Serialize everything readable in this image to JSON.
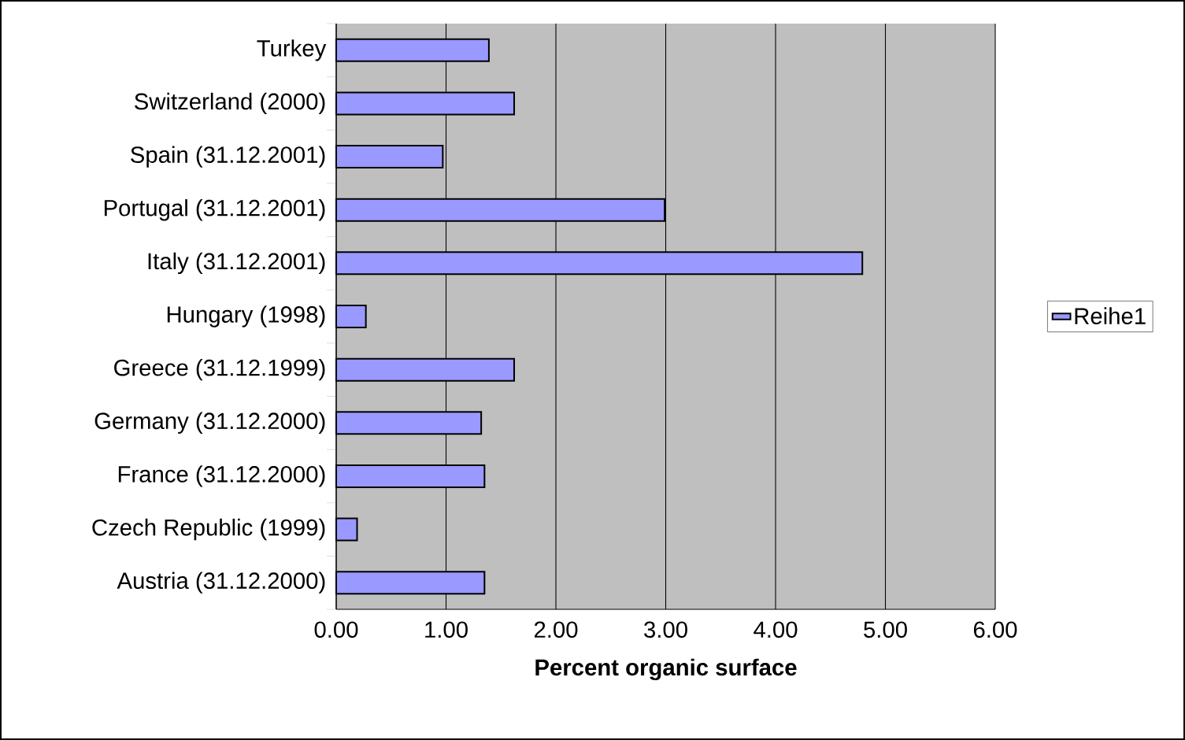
{
  "chart_data": {
    "type": "bar",
    "orientation": "horizontal",
    "xlabel": "Percent organic surface",
    "categories": [
      "Turkey",
      "Switzerland (2000)",
      "Spain (31.12.2001)",
      "Portugal (31.12.2001)",
      "Italy (31.12.2001)",
      "Hungary (1998)",
      "Greece (31.12.1999)",
      "Germany (31.12.2000)",
      "France (31.12.2000)",
      "Czech Republic (1999)",
      "Austria (31.12.2000)"
    ],
    "series": [
      {
        "name": "Reihe1",
        "color": "#9999ff",
        "values": [
          1.39,
          1.62,
          0.97,
          2.99,
          4.79,
          0.27,
          1.62,
          1.32,
          1.35,
          0.19,
          1.35
        ]
      }
    ],
    "xlim": [
      0,
      6
    ],
    "xticks": [
      {
        "value": 0,
        "label": "0.00"
      },
      {
        "value": 1,
        "label": "1.00"
      },
      {
        "value": 2,
        "label": "2.00"
      },
      {
        "value": 3,
        "label": "3.00"
      },
      {
        "value": 4,
        "label": "4.00"
      },
      {
        "value": 5,
        "label": "5.00"
      },
      {
        "value": 6,
        "label": "6.00"
      }
    ],
    "grid": "x",
    "legend": "right"
  }
}
